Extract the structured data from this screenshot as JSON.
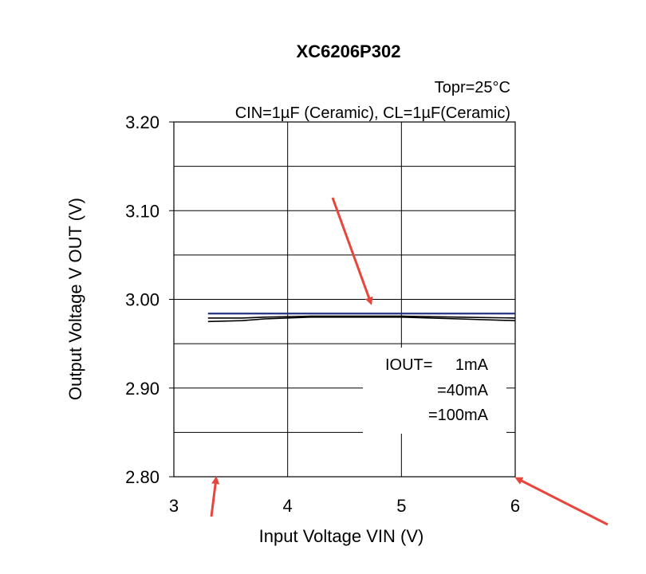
{
  "chart_data": {
    "type": "line",
    "title": "XC6206P302",
    "conditions": {
      "temperature": "Topr=25°C",
      "capacitors": "CIN=1µF (Ceramic), CL=1µF(Ceramic)"
    },
    "xlabel": "Input Voltage VIN (V)",
    "ylabel": "Output Voltage V OUT (V)",
    "xlim": [
      3,
      6
    ],
    "ylim": [
      2.8,
      3.2
    ],
    "x_ticks": [
      "3",
      "4",
      "5",
      "6"
    ],
    "y_ticks": [
      "2.80",
      "2.90",
      "3.00",
      "3.10",
      "3.20"
    ],
    "grid": true,
    "legend_position": "bottom-right inside plot",
    "legend": {
      "header": "IOUT=",
      "entries": [
        "1mA",
        "=40mA",
        "=100mA"
      ]
    },
    "series": [
      {
        "name": "1mA",
        "color": "#1a2a7a",
        "x": [
          3.3,
          3.6,
          4.0,
          4.5,
          5.0,
          5.5,
          6.0
        ],
        "y": [
          2.984,
          2.984,
          2.984,
          2.984,
          2.984,
          2.984,
          2.984
        ]
      },
      {
        "name": "40mA",
        "color": "#000000",
        "x": [
          3.3,
          3.6,
          3.8,
          4.2,
          5.0,
          5.5,
          6.0
        ],
        "y": [
          2.979,
          2.979,
          2.98,
          2.981,
          2.981,
          2.98,
          2.979
        ]
      },
      {
        "name": "100mA",
        "color": "#000000",
        "x": [
          3.3,
          3.6,
          3.8,
          4.2,
          5.0,
          5.5,
          6.0
        ],
        "y": [
          2.975,
          2.976,
          2.978,
          2.98,
          2.98,
          2.978,
          2.976
        ]
      }
    ],
    "annotations": [
      {
        "type": "arrow",
        "color": "#e8453c"
      },
      {
        "type": "arrow",
        "color": "#e8453c"
      },
      {
        "type": "arrow",
        "color": "#e8453c"
      }
    ]
  }
}
